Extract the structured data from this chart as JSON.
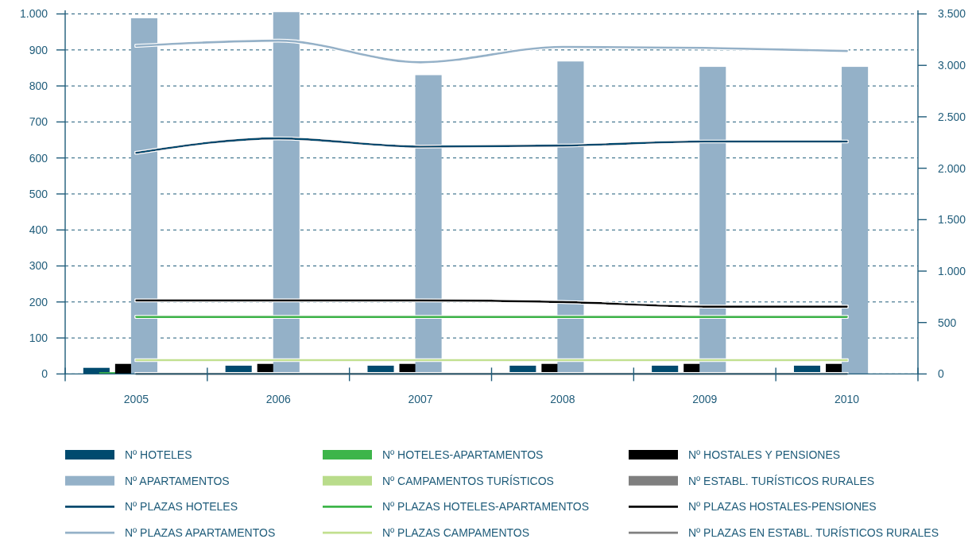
{
  "chart_data": {
    "type": "bar",
    "categories": [
      "2005",
      "2006",
      "2007",
      "2008",
      "2009",
      "2010"
    ],
    "ylim": [
      0,
      1010
    ],
    "yticks": [
      0,
      100,
      200,
      300,
      400,
      500,
      600,
      700,
      800,
      900,
      {
        "value": 1000,
        "label": "1.000"
      }
    ],
    "y2lim": [
      0,
      3535
    ],
    "y2ticks": [
      0,
      500,
      {
        "value": 1000,
        "label": "1.000"
      },
      {
        "value": 1500,
        "label": "1.500"
      },
      {
        "value": 2000,
        "label": "2.000"
      },
      {
        "value": 2500,
        "label": "2.500"
      },
      {
        "value": 3000,
        "label": "3.000"
      },
      {
        "value": 3500,
        "label": "3.500"
      }
    ],
    "grid": "y",
    "legend": "bottom",
    "series": [
      {
        "name": "Nº HOTELES",
        "color": "#004a6e",
        "values": [
          17,
          23,
          23,
          23,
          23,
          23
        ]
      },
      {
        "name": "Nº HOTELES-APARTAMENTOS",
        "color": "#3db54a",
        "values": [
          5,
          3,
          3,
          3,
          3,
          3
        ]
      },
      {
        "name": "Nº HOSTALES Y PENSIONES",
        "color": "#000000",
        "values": [
          28,
          28,
          28,
          28,
          28,
          28
        ]
      },
      {
        "name": "Nº APARTAMENTOS",
        "color": "#94b1c8",
        "values": [
          988,
          1005,
          830,
          868,
          853,
          853
        ]
      },
      {
        "name": "Nº CAMPAMENTOS TURÍSTICOS",
        "color": "#b9dc8b",
        "values": [
          0,
          0,
          0,
          0,
          0,
          0
        ]
      },
      {
        "name": "Nº ESTABL. TURÍSTICOS RURALES",
        "color": "#7f7f7f",
        "values": [
          0,
          0,
          0,
          0,
          0,
          0
        ]
      },
      {
        "name": "Nº PLAZAS HOTELES",
        "type": "line",
        "axis": "y2",
        "color": "#004a6e",
        "values": [
          2150,
          2290,
          2210,
          2220,
          2260,
          2260
        ]
      },
      {
        "name": "Nº PLAZAS HOTELES-APARTAMENTOS",
        "type": "line",
        "axis": "y2",
        "color": "#3db54a",
        "values": [
          555,
          555,
          555,
          555,
          555,
          555
        ]
      },
      {
        "name": "Nº PLAZAS HOSTALES-PENSIONES",
        "type": "line",
        "axis": "y2",
        "color": "#000000",
        "values": [
          715,
          715,
          715,
          700,
          655,
          655
        ]
      },
      {
        "name": "Nº PLAZAS APARTAMENTOS",
        "type": "line",
        "axis": "y2",
        "color": "#94b1c8",
        "values": [
          3190,
          3240,
          3030,
          3180,
          3170,
          3140
        ]
      },
      {
        "name": "Nº PLAZAS CAMPAMENTOS",
        "type": "line",
        "axis": "y2",
        "color": "#c2e08f",
        "values": [
          135,
          135,
          135,
          135,
          135,
          135
        ]
      },
      {
        "name": "Nº PLAZAS EN ESTABL. TURÍSTICOS RURALES",
        "type": "line",
        "axis": "y2",
        "color": "#808080",
        "values": [
          0,
          0,
          0,
          0,
          0,
          0
        ]
      }
    ]
  }
}
